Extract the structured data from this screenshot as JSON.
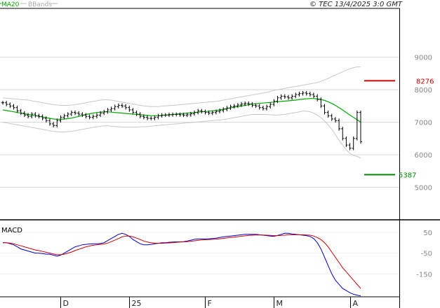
{
  "header": {
    "ma_label": "MA20",
    "bb_label": "BBands",
    "copyright": "© TEC 13/4/2025 3:0 GMT"
  },
  "colors": {
    "ma": "#00aa00",
    "bbands": "#c8c8c8",
    "candle": "#000000",
    "macd_line": "#0000cc",
    "signal_line": "#cc0000",
    "resistance": "#cc0000",
    "support": "#008800",
    "grid": "#d8d8d8"
  },
  "chart_data": [
    {
      "type": "bar",
      "subtype": "ohlc",
      "title": "",
      "y_ticks": [
        5000,
        6000,
        7000,
        8000,
        9000
      ],
      "ylim": [
        4000,
        10500
      ],
      "x_tick_labels": [
        "D",
        "25",
        "F",
        "M",
        "A"
      ],
      "levels": [
        {
          "name": "resistance",
          "value": 8276,
          "label": "8276"
        },
        {
          "name": "support",
          "value": 5387,
          "label": "5387"
        }
      ],
      "close": [
        7600,
        7550,
        7500,
        7450,
        7350,
        7280,
        7220,
        7180,
        7250,
        7200,
        7180,
        7120,
        7050,
        6950,
        6900,
        7050,
        7150,
        7200,
        7250,
        7300,
        7280,
        7250,
        7220,
        7180,
        7150,
        7180,
        7220,
        7280,
        7320,
        7380,
        7420,
        7480,
        7520,
        7500,
        7450,
        7380,
        7300,
        7250,
        7180,
        7150,
        7120,
        7120,
        7150,
        7200,
        7220,
        7220,
        7230,
        7240,
        7240,
        7230,
        7220,
        7230,
        7260,
        7300,
        7350,
        7330,
        7300,
        7280,
        7300,
        7330,
        7360,
        7400,
        7440,
        7480,
        7500,
        7530,
        7560,
        7580,
        7560,
        7520,
        7500,
        7450,
        7420,
        7480,
        7550,
        7650,
        7750,
        7800,
        7780,
        7750,
        7800,
        7850,
        7880,
        7900,
        7880,
        7850,
        7800,
        7700,
        7500,
        7300,
        7200,
        7100,
        7050,
        6800,
        6500,
        6300,
        6200,
        6500,
        7300,
        6400
      ],
      "ma20": [
        7380,
        7360,
        7340,
        7320,
        7300,
        7280,
        7260,
        7240,
        7220,
        7200,
        7180,
        7160,
        7140,
        7120,
        7100,
        7090,
        7090,
        7100,
        7110,
        7130,
        7150,
        7180,
        7210,
        7240,
        7260,
        7280,
        7300,
        7310,
        7320,
        7320,
        7310,
        7300,
        7290,
        7280,
        7270,
        7260,
        7250,
        7240,
        7230,
        7220,
        7210,
        7200,
        7200,
        7200,
        7210,
        7220,
        7230,
        7240,
        7250,
        7260,
        7270,
        7280,
        7290,
        7300,
        7310,
        7320,
        7330,
        7340,
        7350,
        7360,
        7380,
        7400,
        7420,
        7440,
        7460,
        7480,
        7500,
        7520,
        7540,
        7560,
        7570,
        7580,
        7590,
        7600,
        7610,
        7620,
        7630,
        7640,
        7650,
        7660,
        7670,
        7680,
        7700,
        7710,
        7720,
        7730,
        7730,
        7720,
        7700,
        7670,
        7630,
        7580,
        7520,
        7450,
        7380,
        7300,
        7220,
        7150,
        7080,
        7000
      ],
      "bb_upper": [
        7750,
        7740,
        7730,
        7720,
        7710,
        7700,
        7690,
        7680,
        7660,
        7640,
        7620,
        7600,
        7580,
        7560,
        7540,
        7530,
        7520,
        7520,
        7520,
        7530,
        7540,
        7560,
        7580,
        7600,
        7620,
        7640,
        7660,
        7680,
        7690,
        7690,
        7680,
        7660,
        7640,
        7620,
        7600,
        7580,
        7560,
        7540,
        7520,
        7500,
        7490,
        7480,
        7480,
        7480,
        7490,
        7500,
        7510,
        7520,
        7530,
        7540,
        7550,
        7560,
        7570,
        7580,
        7590,
        7600,
        7610,
        7620,
        7630,
        7640,
        7660,
        7680,
        7700,
        7720,
        7740,
        7760,
        7780,
        7800,
        7820,
        7840,
        7860,
        7880,
        7900,
        7920,
        7950,
        7980,
        8000,
        8020,
        8040,
        8060,
        8080,
        8100,
        8120,
        8140,
        8160,
        8180,
        8200,
        8220,
        8260,
        8300,
        8350,
        8400,
        8450,
        8500,
        8550,
        8600,
        8640,
        8680,
        8700,
        8700
      ],
      "bb_lower": [
        7000,
        6980,
        6960,
        6940,
        6920,
        6900,
        6880,
        6860,
        6840,
        6820,
        6800,
        6780,
        6760,
        6740,
        6720,
        6710,
        6700,
        6700,
        6710,
        6720,
        6740,
        6760,
        6780,
        6800,
        6820,
        6840,
        6860,
        6880,
        6890,
        6890,
        6880,
        6870,
        6860,
        6850,
        6850,
        6850,
        6850,
        6850,
        6860,
        6860,
        6870,
        6880,
        6890,
        6900,
        6910,
        6920,
        6930,
        6940,
        6950,
        6960,
        6970,
        6980,
        6990,
        7000,
        7010,
        7020,
        7030,
        7040,
        7050,
        7060,
        7070,
        7080,
        7100,
        7120,
        7140,
        7160,
        7180,
        7200,
        7220,
        7240,
        7240,
        7240,
        7240,
        7240,
        7230,
        7220,
        7220,
        7230,
        7240,
        7260,
        7280,
        7300,
        7320,
        7340,
        7340,
        7320,
        7280,
        7220,
        7140,
        7040,
        6920,
        6780,
        6620,
        6450,
        6300,
        6150,
        6050,
        5980,
        5950,
        5900
      ]
    },
    {
      "type": "line",
      "title": "MACD",
      "y_ticks": [
        50,
        -50,
        -150
      ],
      "ylim": [
        -260,
        110
      ],
      "series": [
        {
          "name": "",
          "values": [
            0,
            0,
            -5,
            -10,
            -20,
            -30,
            -35,
            -40,
            -45,
            -50,
            -50,
            -52,
            -55,
            -55,
            -60,
            -65,
            -60,
            -50,
            -40,
            -30,
            -20,
            -15,
            -10,
            -8,
            -6,
            -5,
            -5,
            -4,
            0,
            10,
            20,
            30,
            40,
            45,
            40,
            30,
            15,
            5,
            -5,
            -10,
            -10,
            -8,
            -5,
            -3,
            0,
            0,
            2,
            3,
            4,
            4,
            5,
            8,
            12,
            16,
            18,
            18,
            18,
            19,
            20,
            22,
            25,
            28,
            30,
            32,
            34,
            36,
            38,
            40,
            40,
            40,
            40,
            38,
            36,
            34,
            32,
            30,
            35,
            40,
            45,
            45,
            42,
            40,
            38,
            36,
            34,
            30,
            20,
            0,
            -30,
            -70,
            -110,
            -150,
            -180,
            -200,
            -220,
            -230,
            -240,
            -248,
            -252,
            -256
          ]
        },
        {
          "name": "",
          "values": [
            0,
            0,
            -2,
            -5,
            -10,
            -15,
            -20,
            -25,
            -30,
            -35,
            -38,
            -42,
            -46,
            -50,
            -54,
            -58,
            -58,
            -55,
            -50,
            -45,
            -38,
            -32,
            -26,
            -20,
            -16,
            -12,
            -10,
            -8,
            -6,
            -2,
            5,
            12,
            20,
            28,
            32,
            32,
            28,
            22,
            15,
            8,
            3,
            0,
            -2,
            -3,
            -3,
            -2,
            -1,
            0,
            2,
            3,
            4,
            5,
            7,
            9,
            11,
            13,
            14,
            15,
            16,
            17,
            19,
            21,
            23,
            25,
            27,
            29,
            31,
            33,
            35,
            36,
            37,
            37,
            37,
            36,
            35,
            34,
            34,
            35,
            36,
            38,
            38,
            38,
            38,
            38,
            37,
            36,
            32,
            25,
            15,
            0,
            -20,
            -45,
            -70,
            -95,
            -120,
            -140,
            -160,
            -180,
            -200,
            -220
          ]
        }
      ]
    }
  ]
}
